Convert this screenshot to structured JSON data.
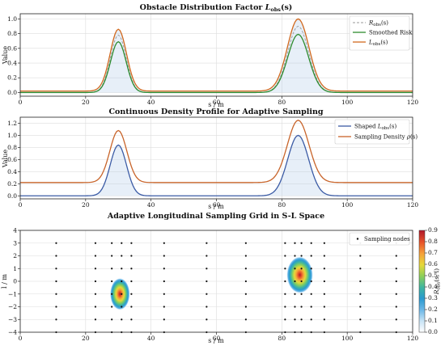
{
  "chart_data": [
    {
      "type": "line",
      "title": "Obstacle Distribution Factor L_obs(s)",
      "title_parts": {
        "main": "Obstacle Distribution Factor ",
        "sym": "L",
        "sub": "obs",
        "tail": "(s)"
      },
      "xlabel": "s / m",
      "ylabel": "Value",
      "xlim": [
        0,
        120
      ],
      "ylim": [
        -0.05,
        1.07
      ],
      "xticks": [
        0,
        20,
        40,
        60,
        80,
        100,
        120
      ],
      "yticks": [
        0.0,
        0.2,
        0.4,
        0.6,
        0.8,
        1.0
      ],
      "ytick_labels": [
        "0.0",
        "0.2",
        "0.4",
        "0.6",
        "0.8",
        "1.0"
      ],
      "grid": true,
      "legend_position": "top-right",
      "series": [
        {
          "name": "R_obs(s)",
          "label_parts": {
            "sym": "R",
            "sub": "obs",
            "tail": "(s)"
          },
          "color": "#9a9a9a",
          "style": "dashed",
          "peaks": [
            {
              "center": 30,
              "height": 0.78,
              "sigma": 2.4
            },
            {
              "center": 85,
              "height": 0.9,
              "sigma": 3.2
            }
          ],
          "baseline": 0.0
        },
        {
          "name": "Smoothed Risk",
          "color": "#2e8b2e",
          "style": "solid",
          "peaks": [
            {
              "center": 30,
              "height": 0.69,
              "sigma": 2.4
            },
            {
              "center": 85,
              "height": 0.79,
              "sigma": 3.2
            }
          ],
          "baseline": 0.0
        },
        {
          "name": "L_obs(s)",
          "label_parts": {
            "sym": "L",
            "sub": "obs",
            "tail": "(s)"
          },
          "color": "#d2691e",
          "style": "solid",
          "peaks": [
            {
              "center": 30,
              "height": 0.84,
              "sigma": 2.5
            },
            {
              "center": 85,
              "height": 0.98,
              "sigma": 3.3
            }
          ],
          "baseline": 0.02
        }
      ]
    },
    {
      "type": "line",
      "title": "Continuous Density Profile for Adaptive Sampling",
      "xlabel": "s / m",
      "ylabel": "Value",
      "xlim": [
        0,
        120
      ],
      "ylim": [
        -0.05,
        1.3
      ],
      "xticks": [
        0,
        20,
        40,
        60,
        80,
        100,
        120
      ],
      "yticks": [
        0.0,
        0.2,
        0.4,
        0.6,
        0.8,
        1.0,
        1.2
      ],
      "ytick_labels": [
        "0.0",
        "0.2",
        "0.4",
        "0.6",
        "0.8",
        "1.0",
        "1.2"
      ],
      "grid": true,
      "legend_position": "top-right",
      "series": [
        {
          "name": "Shaped L_obs(s)",
          "label_parts": {
            "pre": "Shaped ",
            "sym": "L",
            "sub": "obs",
            "tail": "(s)"
          },
          "color": "#3b5ba5",
          "style": "solid",
          "peaks": [
            {
              "center": 30,
              "height": 0.84,
              "sigma": 2.5
            },
            {
              "center": 85,
              "height": 1.0,
              "sigma": 3.2
            }
          ],
          "baseline": 0.0
        },
        {
          "name": "Sampling Density ρ(s)",
          "label_parts": {
            "pre": "Sampling Density ",
            "sym": "ρ",
            "sub": "",
            "tail": "(s)"
          },
          "color": "#c8642a",
          "style": "solid",
          "peaks": [
            {
              "center": 30,
              "height": 0.86,
              "sigma": 2.6
            },
            {
              "center": 85,
              "height": 1.03,
              "sigma": 3.3
            }
          ],
          "baseline": 0.22
        }
      ]
    },
    {
      "type": "heatmap",
      "title": "Adaptive Longitudinal Sampling Grid in S-L Space",
      "xlabel": "s / m",
      "ylabel": "l / m",
      "xlim": [
        0,
        120
      ],
      "ylim": [
        -4,
        4
      ],
      "xticks": [
        0,
        20,
        40,
        60,
        80,
        100,
        120
      ],
      "yticks": [
        -4,
        -3,
        -2,
        -1,
        0,
        1,
        2,
        3,
        4
      ],
      "grid": true,
      "legend_position": "top-right",
      "legend_entry": "Sampling nodes",
      "colorbar_label": "R_obs(s, l)",
      "colorbar_label_parts": {
        "sym": "R",
        "sub": "obs",
        "tail": "(s, l)"
      },
      "colorbar_range": [
        0,
        0.9
      ],
      "colorbar_ticks": [
        "0.0",
        "0.1",
        "0.2",
        "0.3",
        "0.4",
        "0.5",
        "0.6",
        "0.7",
        "0.8",
        "0.9"
      ],
      "blobs": [
        {
          "s": 30.5,
          "l": -1.0,
          "peak": 0.8
        },
        {
          "s": 85.5,
          "l": 0.5,
          "peak": 0.85
        }
      ],
      "sample_s": [
        11,
        23,
        28,
        31,
        34,
        44,
        57,
        69,
        81,
        84,
        86,
        89,
        93,
        104,
        115
      ],
      "sample_l": [
        -4,
        -3,
        -2,
        -1,
        0,
        1,
        2,
        3
      ],
      "colors": [
        "#ffffff",
        "#c8e4f6",
        "#6cb8e8",
        "#2a9ad0",
        "#3fb6a0",
        "#8ccf5a",
        "#e6d93a",
        "#f5a23a",
        "#e8552a",
        "#b0182a"
      ]
    }
  ]
}
